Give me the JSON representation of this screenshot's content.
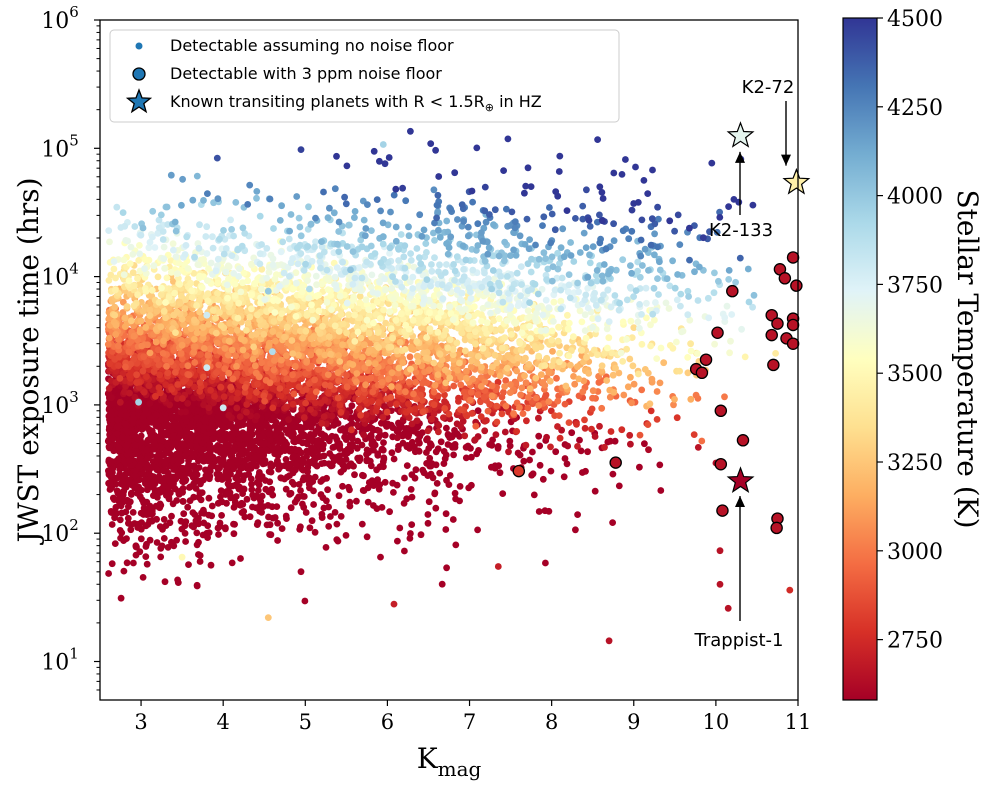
{
  "chart_data": {
    "type": "scatter",
    "title": "",
    "xlabel_main": "K",
    "xlabel_sub": "mag",
    "ylabel": "JWST exposure time (hrs)",
    "x_range": [
      2.5,
      11
    ],
    "y_range_log10": [
      0.7,
      6
    ],
    "y_scale": "log",
    "x_ticks": [
      3,
      4,
      5,
      6,
      7,
      8,
      9,
      10,
      11
    ],
    "x_tick_labels": [
      "3",
      "4",
      "5",
      "6",
      "7",
      "8",
      "9",
      "10",
      "11"
    ],
    "y_ticks_log10": [
      1,
      2,
      3,
      4,
      5,
      6
    ],
    "y_tick_labels": [
      {
        "base": "10",
        "exp": "1"
      },
      {
        "base": "10",
        "exp": "2"
      },
      {
        "base": "10",
        "exp": "3"
      },
      {
        "base": "10",
        "exp": "4"
      },
      {
        "base": "10",
        "exp": "5"
      },
      {
        "base": "10",
        "exp": "6"
      }
    ],
    "grid": false,
    "legend_position": "top-left",
    "legend": [
      {
        "label": "Detectable assuming no noise floor",
        "marker": "small-dot"
      },
      {
        "label": "Detectable with 3 ppm noise floor",
        "marker": "circle"
      },
      {
        "label": "Known transiting planets with R < 1.5R",
        "sub": "⊕",
        "suffix": " in HZ",
        "marker": "star"
      }
    ],
    "colorbar": {
      "label": "Stellar Temperature (K)",
      "range": [
        2580,
        4500
      ],
      "ticks": [
        2750,
        3000,
        3250,
        3500,
        3750,
        4000,
        4250,
        4500
      ],
      "tick_labels": [
        "2750",
        "3000",
        "3250",
        "3500",
        "3750",
        "4000",
        "4250",
        "4500"
      ]
    },
    "series": [
      {
        "name": "Detectable assuming no noise floor",
        "note": "thousands of simulated systems; density field approximated, representative outliers listed",
        "sample_points": [
          {
            "k": 2.97,
            "t": 1050,
            "temp": 3950
          },
          {
            "k": 3.5,
            "t": 65,
            "temp": 3500
          },
          {
            "k": 3.8,
            "t": 5000,
            "temp": 3800
          },
          {
            "k": 3.8,
            "t": 1950,
            "temp": 3800
          },
          {
            "k": 4.0,
            "t": 950,
            "temp": 3800
          },
          {
            "k": 4.55,
            "t": 7700,
            "temp": 4000
          },
          {
            "k": 4.55,
            "t": 22,
            "temp": 3250
          },
          {
            "k": 4.6,
            "t": 2600,
            "temp": 3900
          },
          {
            "k": 4.95,
            "t": 20800,
            "temp": 4000
          },
          {
            "k": 5.05,
            "t": 8000,
            "temp": 3900
          },
          {
            "k": 5.95,
            "t": 107000,
            "temp": 3950
          },
          {
            "k": 6.08,
            "t": 28,
            "temp": 2700
          },
          {
            "k": 7.35,
            "t": 55,
            "temp": 2700
          },
          {
            "k": 8.7,
            "t": 14.5,
            "temp": 2650
          },
          {
            "k": 10.15,
            "t": 26,
            "temp": 2650
          },
          {
            "k": 10.05,
            "t": 73,
            "temp": 2650
          },
          {
            "k": 10.05,
            "t": 40,
            "temp": 2650
          },
          {
            "k": 10.9,
            "t": 36,
            "temp": 2750
          }
        ]
      },
      {
        "name": "Detectable with 3 ppm noise floor",
        "points": [
          {
            "k": 7.6,
            "t": 305,
            "temp": 2800
          },
          {
            "k": 8.78,
            "t": 355,
            "temp": 2650
          },
          {
            "k": 9.76,
            "t": 1900,
            "temp": 2650
          },
          {
            "k": 9.83,
            "t": 1780,
            "temp": 2650
          },
          {
            "k": 9.88,
            "t": 2250,
            "temp": 2650
          },
          {
            "k": 10.02,
            "t": 3650,
            "temp": 2650
          },
          {
            "k": 10.06,
            "t": 900,
            "temp": 2650
          },
          {
            "k": 10.06,
            "t": 345,
            "temp": 2650
          },
          {
            "k": 10.08,
            "t": 150,
            "temp": 2650
          },
          {
            "k": 10.2,
            "t": 7700,
            "temp": 2650
          },
          {
            "k": 10.33,
            "t": 530,
            "temp": 2650
          },
          {
            "k": 10.68,
            "t": 5000,
            "temp": 2650
          },
          {
            "k": 10.68,
            "t": 3500,
            "temp": 2650
          },
          {
            "k": 10.7,
            "t": 2050,
            "temp": 2650
          },
          {
            "k": 10.75,
            "t": 4300,
            "temp": 2650
          },
          {
            "k": 10.78,
            "t": 11400,
            "temp": 2650
          },
          {
            "k": 10.84,
            "t": 9700,
            "temp": 2650
          },
          {
            "k": 10.86,
            "t": 3300,
            "temp": 2650
          },
          {
            "k": 10.94,
            "t": 14100,
            "temp": 2650
          },
          {
            "k": 10.94,
            "t": 4700,
            "temp": 2650
          },
          {
            "k": 10.94,
            "t": 4200,
            "temp": 2650
          },
          {
            "k": 10.94,
            "t": 3000,
            "temp": 2650
          },
          {
            "k": 10.98,
            "t": 8500,
            "temp": 2650
          },
          {
            "k": 10.75,
            "t": 130,
            "temp": 2650
          },
          {
            "k": 10.74,
            "t": 110,
            "temp": 2650
          }
        ]
      },
      {
        "name": "Known transiting planets with R < 1.5R⊕ in HZ",
        "points": [
          {
            "name": "K2-133",
            "k": 10.3,
            "t": 125000,
            "temp": 3700
          },
          {
            "name": "K2-72",
            "k": 10.98,
            "t": 54000,
            "temp": 3450
          },
          {
            "name": "Trappist-1",
            "k": 10.3,
            "t": 255,
            "temp": 2580
          }
        ]
      }
    ],
    "annotations": [
      {
        "text": "K2-72",
        "points_to": "K2-72"
      },
      {
        "text": "K2-133",
        "points_to": "K2-133"
      },
      {
        "text": "Trappist-1",
        "points_to": "Trappist-1"
      }
    ]
  }
}
